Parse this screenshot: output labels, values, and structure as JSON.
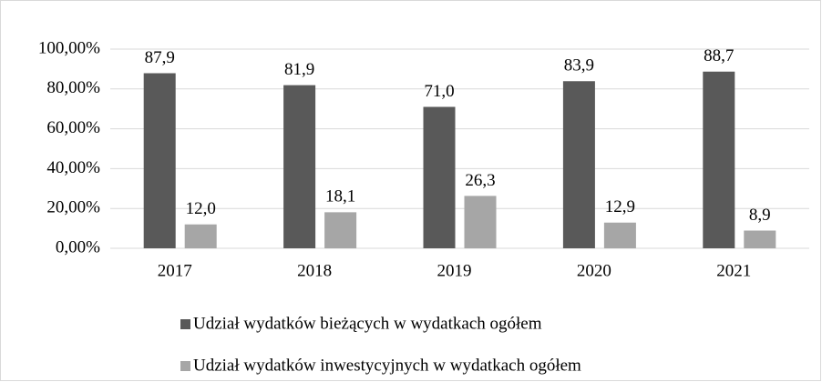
{
  "chart_data": {
    "type": "bar",
    "categories": [
      "2017",
      "2018",
      "2019",
      "2020",
      "2021"
    ],
    "series": [
      {
        "name": "Udział wydatków bieżących w wydatkach ogółem",
        "color": "#595959",
        "values": [
          87.9,
          81.9,
          71.0,
          83.9,
          88.7
        ],
        "value_labels": [
          "87,9",
          "81,9",
          "71,0",
          "83,9",
          "88,7"
        ]
      },
      {
        "name": "Udział wydatków inwestycyjnych w wydatkach ogółem",
        "color": "#a6a6a6",
        "values": [
          12.0,
          18.1,
          26.3,
          12.9,
          8.9
        ],
        "value_labels": [
          "12,0",
          "18,1",
          "26,3",
          "12,9",
          "8,9"
        ]
      }
    ],
    "ylim": [
      0,
      100
    ],
    "yticks": [
      {
        "value": 0,
        "label": "0,00%"
      },
      {
        "value": 20,
        "label": "20,00%"
      },
      {
        "value": 40,
        "label": "40,00%"
      },
      {
        "value": 60,
        "label": "60,00%"
      },
      {
        "value": 80,
        "label": "80,00%"
      },
      {
        "value": 100,
        "label": "100,00%"
      }
    ],
    "grid": true,
    "legend": "bottom"
  }
}
